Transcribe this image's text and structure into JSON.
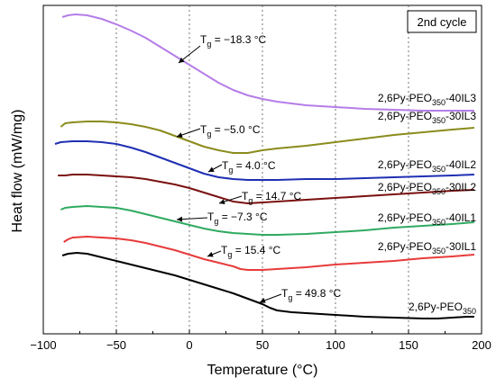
{
  "chart_data": {
    "type": "line",
    "xlabel": "Temperature (°C)",
    "ylabel": "Heat flow (mW/mg)",
    "xlim": [
      -100,
      200
    ],
    "xticks": [
      -100,
      -50,
      0,
      50,
      100,
      150,
      200
    ],
    "vgrid": [
      -50,
      0,
      50,
      100,
      150
    ],
    "grid": "dotted vertical",
    "annotation": "2nd cycle",
    "series": [
      {
        "name": "2,6Py-PEO350-40IL3",
        "label_base": "2,6Py-PEO",
        "label_sub": "350",
        "label_suffix": "-40IL3",
        "color": "#b57de8",
        "points": [
          [
            -87,
            19
          ],
          [
            -83,
            17
          ],
          [
            -78,
            16
          ],
          [
            -70,
            17
          ],
          [
            -60,
            21
          ],
          [
            -50,
            27
          ],
          [
            -40,
            34
          ],
          [
            -30,
            42
          ],
          [
            -20,
            52
          ],
          [
            -10,
            62
          ],
          [
            0,
            72
          ],
          [
            10,
            82
          ],
          [
            20,
            92
          ],
          [
            30,
            100
          ],
          [
            40,
            106
          ],
          [
            50,
            110
          ],
          [
            60,
            113
          ],
          [
            70,
            115
          ],
          [
            80,
            117
          ],
          [
            100,
            119
          ],
          [
            120,
            121
          ],
          [
            140,
            122
          ],
          [
            160,
            123
          ],
          [
            180,
            123
          ],
          [
            195,
            123
          ]
        ],
        "tg": "−18.3",
        "tg_x": 0,
        "tg_y": 0
      },
      {
        "name": "2,6Py-PEO350-30IL3",
        "label_base": "2,6Py-PEO",
        "label_sub": "350",
        "label_suffix": "-30IL3",
        "color": "#8b8b1d",
        "points": [
          [
            -88,
            141
          ],
          [
            -85,
            137
          ],
          [
            -80,
            136
          ],
          [
            -70,
            135
          ],
          [
            -60,
            135
          ],
          [
            -50,
            136
          ],
          [
            -40,
            138
          ],
          [
            -30,
            141
          ],
          [
            -20,
            145
          ],
          [
            -10,
            151
          ],
          [
            0,
            157
          ],
          [
            10,
            163
          ],
          [
            20,
            167
          ],
          [
            30,
            170
          ],
          [
            40,
            170
          ],
          [
            50,
            167
          ],
          [
            60,
            165
          ],
          [
            80,
            162
          ],
          [
            100,
            158
          ],
          [
            120,
            154
          ],
          [
            140,
            150
          ],
          [
            160,
            147
          ],
          [
            180,
            144
          ],
          [
            195,
            142
          ]
        ],
        "tg": "−5.0",
        "tg_x": 0,
        "tg_y": 0
      },
      {
        "name": "2,6Py-PEO350-40IL2",
        "label_base": "2,6Py-PEO",
        "label_sub": "350",
        "label_suffix": "-40IL2",
        "color": "#1f2fb3",
        "points": [
          [
            -92,
            160
          ],
          [
            -88,
            158
          ],
          [
            -80,
            157
          ],
          [
            -70,
            157
          ],
          [
            -60,
            158
          ],
          [
            -50,
            160
          ],
          [
            -40,
            164
          ],
          [
            -30,
            169
          ],
          [
            -20,
            175
          ],
          [
            -10,
            181
          ],
          [
            0,
            187
          ],
          [
            10,
            193
          ],
          [
            20,
            197
          ],
          [
            30,
            199
          ],
          [
            40,
            200
          ],
          [
            50,
            200
          ],
          [
            60,
            200
          ],
          [
            80,
            199
          ],
          [
            100,
            199
          ],
          [
            120,
            198
          ],
          [
            140,
            197
          ],
          [
            160,
            196
          ],
          [
            180,
            195
          ],
          [
            195,
            194
          ]
        ],
        "tg": "4.0",
        "tg_x": 0,
        "tg_y": 0
      },
      {
        "name": "2,6Py-PEO350-30IL2",
        "label_base": "2,6Py-PEO",
        "label_sub": "350",
        "label_suffix": "-30IL2",
        "color": "#7a1010",
        "points": [
          [
            -90,
            195
          ],
          [
            -85,
            195
          ],
          [
            -80,
            194
          ],
          [
            -70,
            194
          ],
          [
            -60,
            195
          ],
          [
            -50,
            196
          ],
          [
            -40,
            197
          ],
          [
            -30,
            199
          ],
          [
            -20,
            202
          ],
          [
            -10,
            205
          ],
          [
            0,
            209
          ],
          [
            10,
            214
          ],
          [
            20,
            219
          ],
          [
            30,
            224
          ],
          [
            35,
            225
          ],
          [
            40,
            226
          ],
          [
            50,
            225
          ],
          [
            60,
            224
          ],
          [
            80,
            222
          ],
          [
            100,
            220
          ],
          [
            120,
            218
          ],
          [
            140,
            216
          ],
          [
            160,
            214
          ],
          [
            180,
            212
          ],
          [
            195,
            211
          ]
        ],
        "tg": "14.7",
        "tg_x": 0,
        "tg_y": 0
      },
      {
        "name": "2,6Py-PEO350-40IL1",
        "label_base": "2,6Py-PEO",
        "label_sub": "350",
        "label_suffix": "-40IL1",
        "color": "#2faa60",
        "points": [
          [
            -88,
            233
          ],
          [
            -85,
            231
          ],
          [
            -80,
            230
          ],
          [
            -70,
            229
          ],
          [
            -60,
            230
          ],
          [
            -50,
            231
          ],
          [
            -40,
            234
          ],
          [
            -30,
            238
          ],
          [
            -20,
            242
          ],
          [
            -10,
            246
          ],
          [
            0,
            250
          ],
          [
            10,
            254
          ],
          [
            20,
            257
          ],
          [
            30,
            259
          ],
          [
            40,
            260
          ],
          [
            50,
            261
          ],
          [
            60,
            261
          ],
          [
            80,
            260
          ],
          [
            100,
            258
          ],
          [
            120,
            256
          ],
          [
            140,
            253
          ],
          [
            160,
            251
          ],
          [
            180,
            249
          ],
          [
            195,
            247
          ]
        ],
        "tg": "−7.3",
        "tg_x": 0,
        "tg_y": 0
      },
      {
        "name": "2,6Py-PEO350-30IL1",
        "label_base": "2,6Py-PEO",
        "label_sub": "350",
        "label_suffix": "-30IL1",
        "color": "#e83a3a",
        "points": [
          [
            -86,
            269
          ],
          [
            -83,
            266
          ],
          [
            -80,
            264
          ],
          [
            -70,
            263
          ],
          [
            -60,
            264
          ],
          [
            -50,
            265
          ],
          [
            -40,
            267
          ],
          [
            -30,
            270
          ],
          [
            -20,
            274
          ],
          [
            -10,
            278
          ],
          [
            0,
            283
          ],
          [
            10,
            288
          ],
          [
            20,
            292
          ],
          [
            30,
            296
          ],
          [
            35,
            299
          ],
          [
            40,
            300
          ],
          [
            50,
            300
          ],
          [
            60,
            299
          ],
          [
            80,
            297
          ],
          [
            100,
            294
          ],
          [
            120,
            292
          ],
          [
            140,
            290
          ],
          [
            160,
            287
          ],
          [
            180,
            285
          ],
          [
            195,
            283
          ]
        ],
        "tg": "15.4",
        "tg_x": 0,
        "tg_y": 0
      },
      {
        "name": "2,6Py-PEO350",
        "label_base": "2,6Py-PEO",
        "label_sub": "350",
        "label_suffix": "",
        "color": "#000000",
        "points": [
          [
            -87,
            284
          ],
          [
            -83,
            282
          ],
          [
            -77,
            281
          ],
          [
            -70,
            282
          ],
          [
            -60,
            286
          ],
          [
            -50,
            290
          ],
          [
            -40,
            294
          ],
          [
            -30,
            298
          ],
          [
            -20,
            302
          ],
          [
            -10,
            306
          ],
          [
            0,
            311
          ],
          [
            10,
            316
          ],
          [
            20,
            321
          ],
          [
            30,
            326
          ],
          [
            40,
            332
          ],
          [
            50,
            338
          ],
          [
            55,
            342
          ],
          [
            60,
            345
          ],
          [
            70,
            347
          ],
          [
            80,
            348
          ],
          [
            100,
            350
          ],
          [
            120,
            352
          ],
          [
            140,
            353
          ],
          [
            160,
            354
          ],
          [
            170,
            354
          ],
          [
            180,
            353
          ],
          [
            190,
            352
          ],
          [
            195,
            352
          ]
        ],
        "tg": "49.8",
        "tg_x": 0,
        "tg_y": 0
      }
    ]
  },
  "tg_prefix": "T",
  "tg_sub": "g",
  "tg_equals": " = ",
  "tg_unit": " °C"
}
